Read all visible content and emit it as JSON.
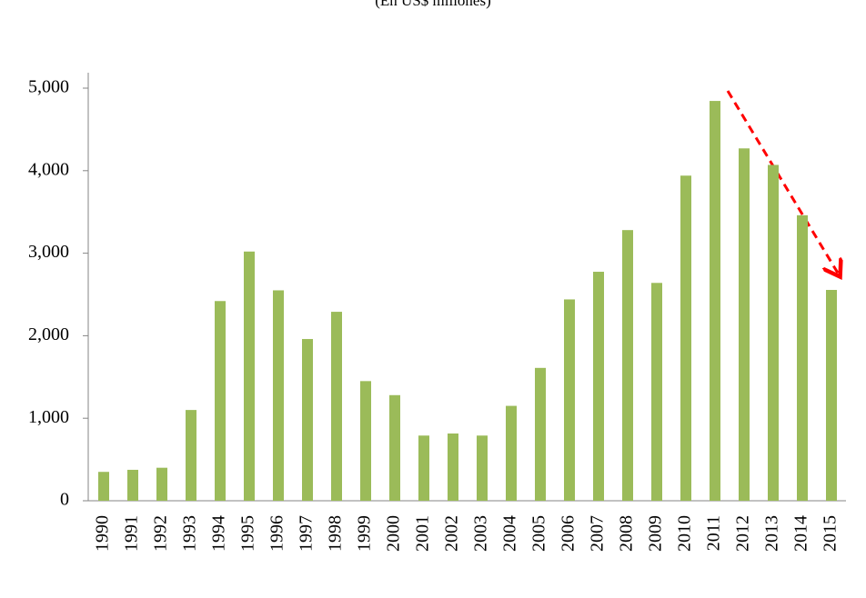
{
  "chart_data": {
    "type": "bar",
    "subtitle": "(En US$ millones)",
    "categories": [
      "1990",
      "1991",
      "1992",
      "1993",
      "1994",
      "1995",
      "1996",
      "1997",
      "1998",
      "1999",
      "2000",
      "2001",
      "2002",
      "2003",
      "2004",
      "2005",
      "2006",
      "2007",
      "2008",
      "2009",
      "2010",
      "2011",
      "2012",
      "2013",
      "2014",
      "2015"
    ],
    "values": [
      350,
      375,
      400,
      1100,
      2420,
      3020,
      2550,
      1960,
      2290,
      1450,
      1280,
      790,
      815,
      790,
      1150,
      1610,
      2440,
      2775,
      3280,
      2640,
      3940,
      4845,
      4270,
      4070,
      3460,
      2555
    ],
    "color": "#9bbb59",
    "ylim": [
      0,
      5000
    ],
    "yticks": [
      0,
      {
        "value": 1000,
        "label": "1,000"
      },
      {
        "value": 2000,
        "label": "2,000"
      },
      {
        "value": 3000,
        "label": "3,000"
      },
      {
        "value": 4000,
        "label": "4,000"
      },
      {
        "value": 5000,
        "label": "5,000"
      }
    ],
    "grid": false
  }
}
